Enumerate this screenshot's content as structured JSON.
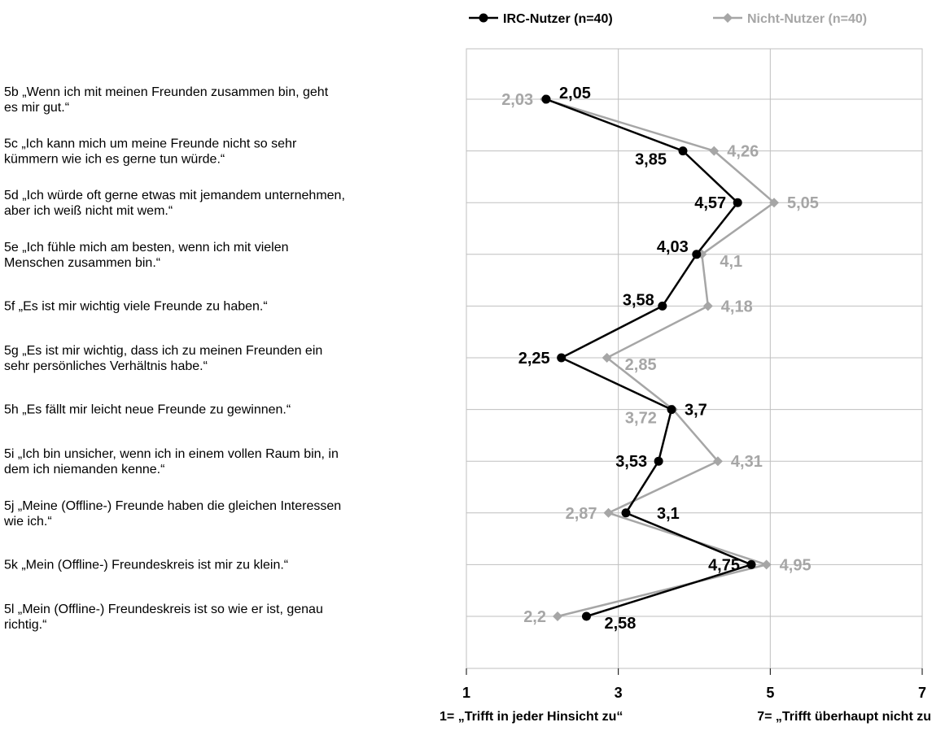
{
  "chart_data": {
    "type": "line",
    "orientation": "vertical-profile",
    "x_axis": {
      "min": 1,
      "max": 7,
      "ticks": [
        1,
        3,
        5,
        7
      ],
      "tick_labels": [
        "1",
        "3",
        "5",
        "7"
      ],
      "caption_left": "1= „Trifft in jeder Hinsicht zu“",
      "caption_right": "7= „Trifft überhaupt nicht zu"
    },
    "grid": true,
    "legend_position": "top",
    "categories": [
      [
        "5b „Wenn ich mit meinen Freunden zusammen bin, geht",
        "es mir gut.“"
      ],
      [
        "5c „Ich kann mich um meine Freunde nicht so sehr",
        "kümmern wie ich es gerne tun würde.“"
      ],
      [
        "5d „Ich würde oft gerne etwas mit jemandem unternehmen,",
        "aber ich weiß nicht mit wem.“"
      ],
      [
        "5e „Ich fühle mich am besten, wenn ich mit vielen",
        "Menschen zusammen bin.“"
      ],
      [
        "5f „Es ist mir wichtig viele Freunde zu haben.“"
      ],
      [
        "5g „Es ist mir wichtig, dass ich zu meinen Freunden ein",
        "sehr persönliches Verhältnis habe.“"
      ],
      [
        "5h „Es fällt mir leicht neue Freunde zu gewinnen.“"
      ],
      [
        "5i „Ich bin unsicher, wenn ich in einem vollen Raum bin, in",
        "dem ich niemanden kenne.“"
      ],
      [
        "5j „Meine (Offline-) Freunde haben die gleichen Interessen",
        "wie ich.“"
      ],
      [
        "5k „Mein (Offline-) Freundeskreis ist mir zu klein.“"
      ],
      [
        "5l „Mein (Offline-) Freundeskreis ist so wie er ist, genau",
        "richtig.“"
      ]
    ],
    "series": [
      {
        "name": "IRC-Nutzer (n=40)",
        "color": "#000000",
        "marker": "circle",
        "values": [
          2.05,
          3.85,
          4.57,
          4.03,
          3.58,
          2.25,
          3.7,
          3.53,
          3.1,
          4.75,
          2.58
        ],
        "labels": [
          "2,05",
          "3,85",
          "4,57",
          "4,03",
          "3,58",
          "2,25",
          "3,7",
          "3,53",
          "3,1",
          "4,75",
          "2,58"
        ]
      },
      {
        "name": "Nicht-Nutzer (n=40)",
        "color": "#a6a6a6",
        "marker": "diamond",
        "values": [
          2.03,
          4.26,
          5.05,
          4.1,
          4.18,
          2.85,
          3.72,
          4.31,
          2.87,
          4.95,
          2.2
        ],
        "labels": [
          "2,03",
          "4,26",
          "5,05",
          "4,1",
          "4,18",
          "2,85",
          "3,72",
          "4,31",
          "2,87",
          "4,95",
          "2,2"
        ]
      }
    ]
  }
}
